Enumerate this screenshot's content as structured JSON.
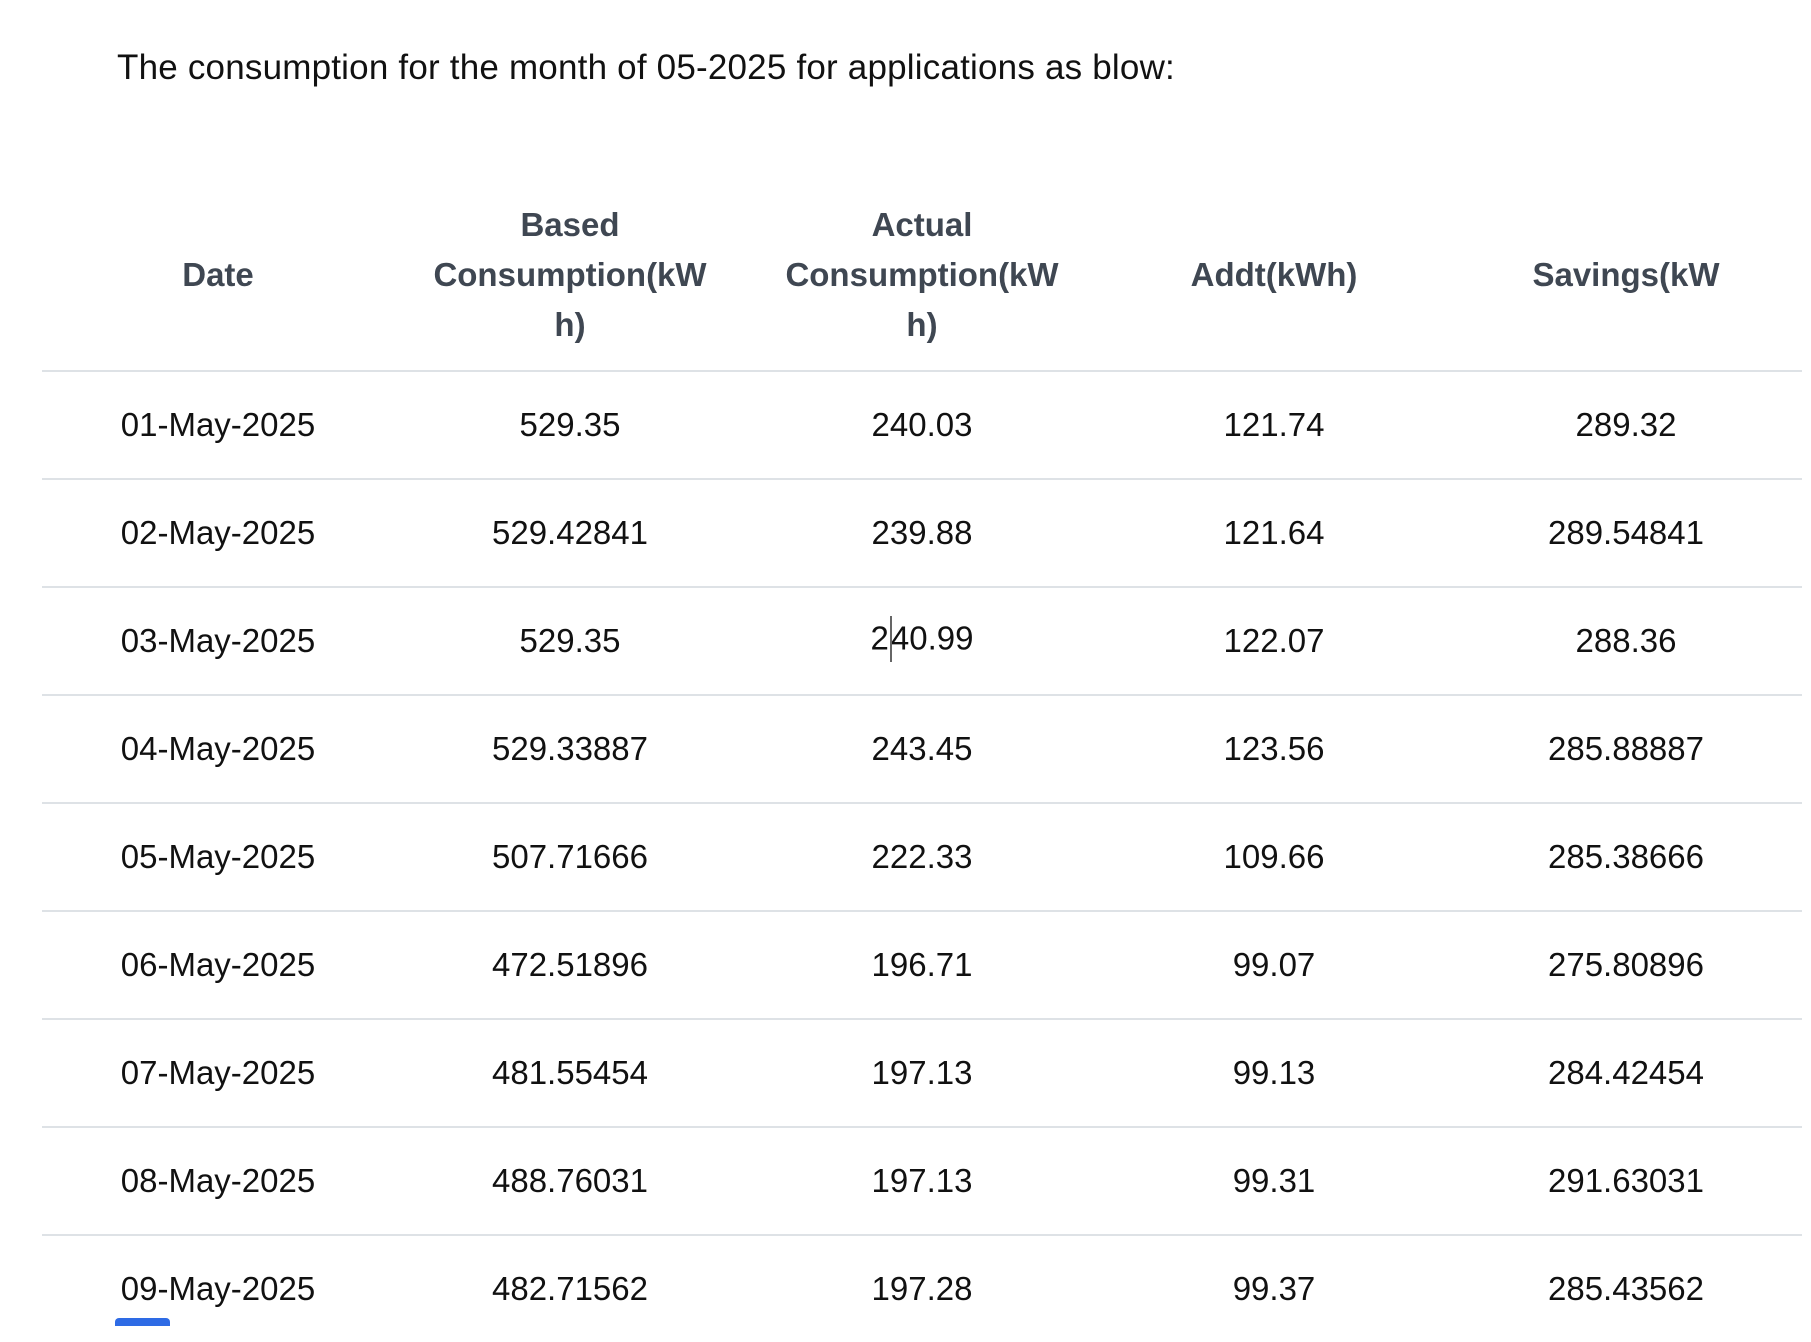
{
  "page": {
    "title": "The consumption for the month of 05-2025 for applications as blow:"
  },
  "table": {
    "headers": [
      {
        "key": "date",
        "lines": [
          "Date"
        ]
      },
      {
        "key": "based",
        "lines": [
          "Based",
          "Consumption(kW",
          "h)"
        ]
      },
      {
        "key": "actual",
        "lines": [
          "Actual",
          "Consumption(kW",
          "h)"
        ]
      },
      {
        "key": "addt",
        "lines": [
          "Addt(kWh)"
        ]
      },
      {
        "key": "savings",
        "lines": [
          "Savings(kW"
        ]
      }
    ],
    "rows": [
      {
        "date": "01-May-2025",
        "based": "529.35",
        "actual": "240.03",
        "addt": "121.74",
        "savings": "289.32"
      },
      {
        "date": "02-May-2025",
        "based": "529.42841",
        "actual": "239.88",
        "addt": "121.64",
        "savings": "289.54841"
      },
      {
        "date": "03-May-2025",
        "based": "529.35",
        "actual": "240.99",
        "addt": "122.07",
        "savings": "288.36"
      },
      {
        "date": "04-May-2025",
        "based": "529.33887",
        "actual": "243.45",
        "addt": "123.56",
        "savings": "285.88887"
      },
      {
        "date": "05-May-2025",
        "based": "507.71666",
        "actual": "222.33",
        "addt": "109.66",
        "savings": "285.38666"
      },
      {
        "date": "06-May-2025",
        "based": "472.51896",
        "actual": "196.71",
        "addt": "99.07",
        "savings": "275.80896"
      },
      {
        "date": "07-May-2025",
        "based": "481.55454",
        "actual": "197.13",
        "addt": "99.13",
        "savings": "284.42454"
      },
      {
        "date": "08-May-2025",
        "based": "488.76031",
        "actual": "197.13",
        "addt": "99.31",
        "savings": "291.63031"
      },
      {
        "date": "09-May-2025",
        "based": "482.71562",
        "actual": "197.28",
        "addt": "99.37",
        "savings": "285.43562"
      }
    ],
    "caret": {
      "row_index": 2,
      "column": "actual",
      "after_chars": 1
    }
  },
  "colors": {
    "background": "#ffffff",
    "divider": "#dee2e6",
    "header_text": "#3f4752",
    "body_text": "#111111",
    "caret": "#666666",
    "accent_blue": "#2e6be5"
  }
}
